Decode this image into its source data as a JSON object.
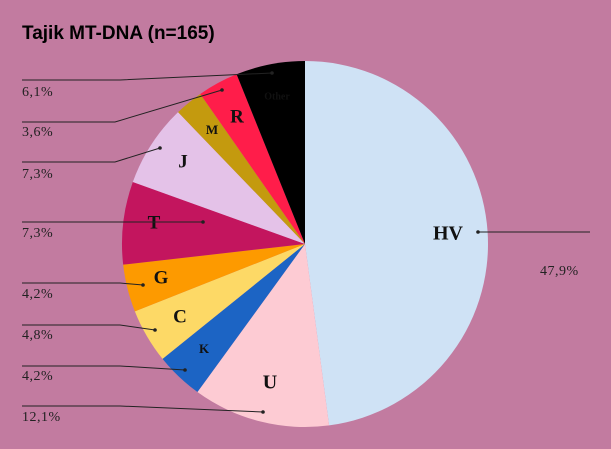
{
  "chart_data": {
    "type": "pie",
    "title": "Tajik MT-DNA (n=165)",
    "categories": [
      "HV",
      "U",
      "K",
      "C",
      "G",
      "T",
      "J",
      "M",
      "R",
      "Other"
    ],
    "values": [
      47.9,
      12.1,
      4.2,
      4.8,
      4.2,
      7.3,
      7.3,
      2.5,
      3.6,
      6.1
    ],
    "value_labels": [
      "47,9%",
      "12,1%",
      "4,2%",
      "4,8%",
      "4,2%",
      "7,3%",
      "7,3%",
      null,
      "3,6%",
      "6,1%"
    ],
    "colors": [
      "#cfe2f5",
      "#fdcbd3",
      "#1c64c4",
      "#fdd966",
      "#fd9a00",
      "#c3155e",
      "#e4c2e8",
      "#c49a0e",
      "#ff1d4a",
      "#000000"
    ]
  }
}
